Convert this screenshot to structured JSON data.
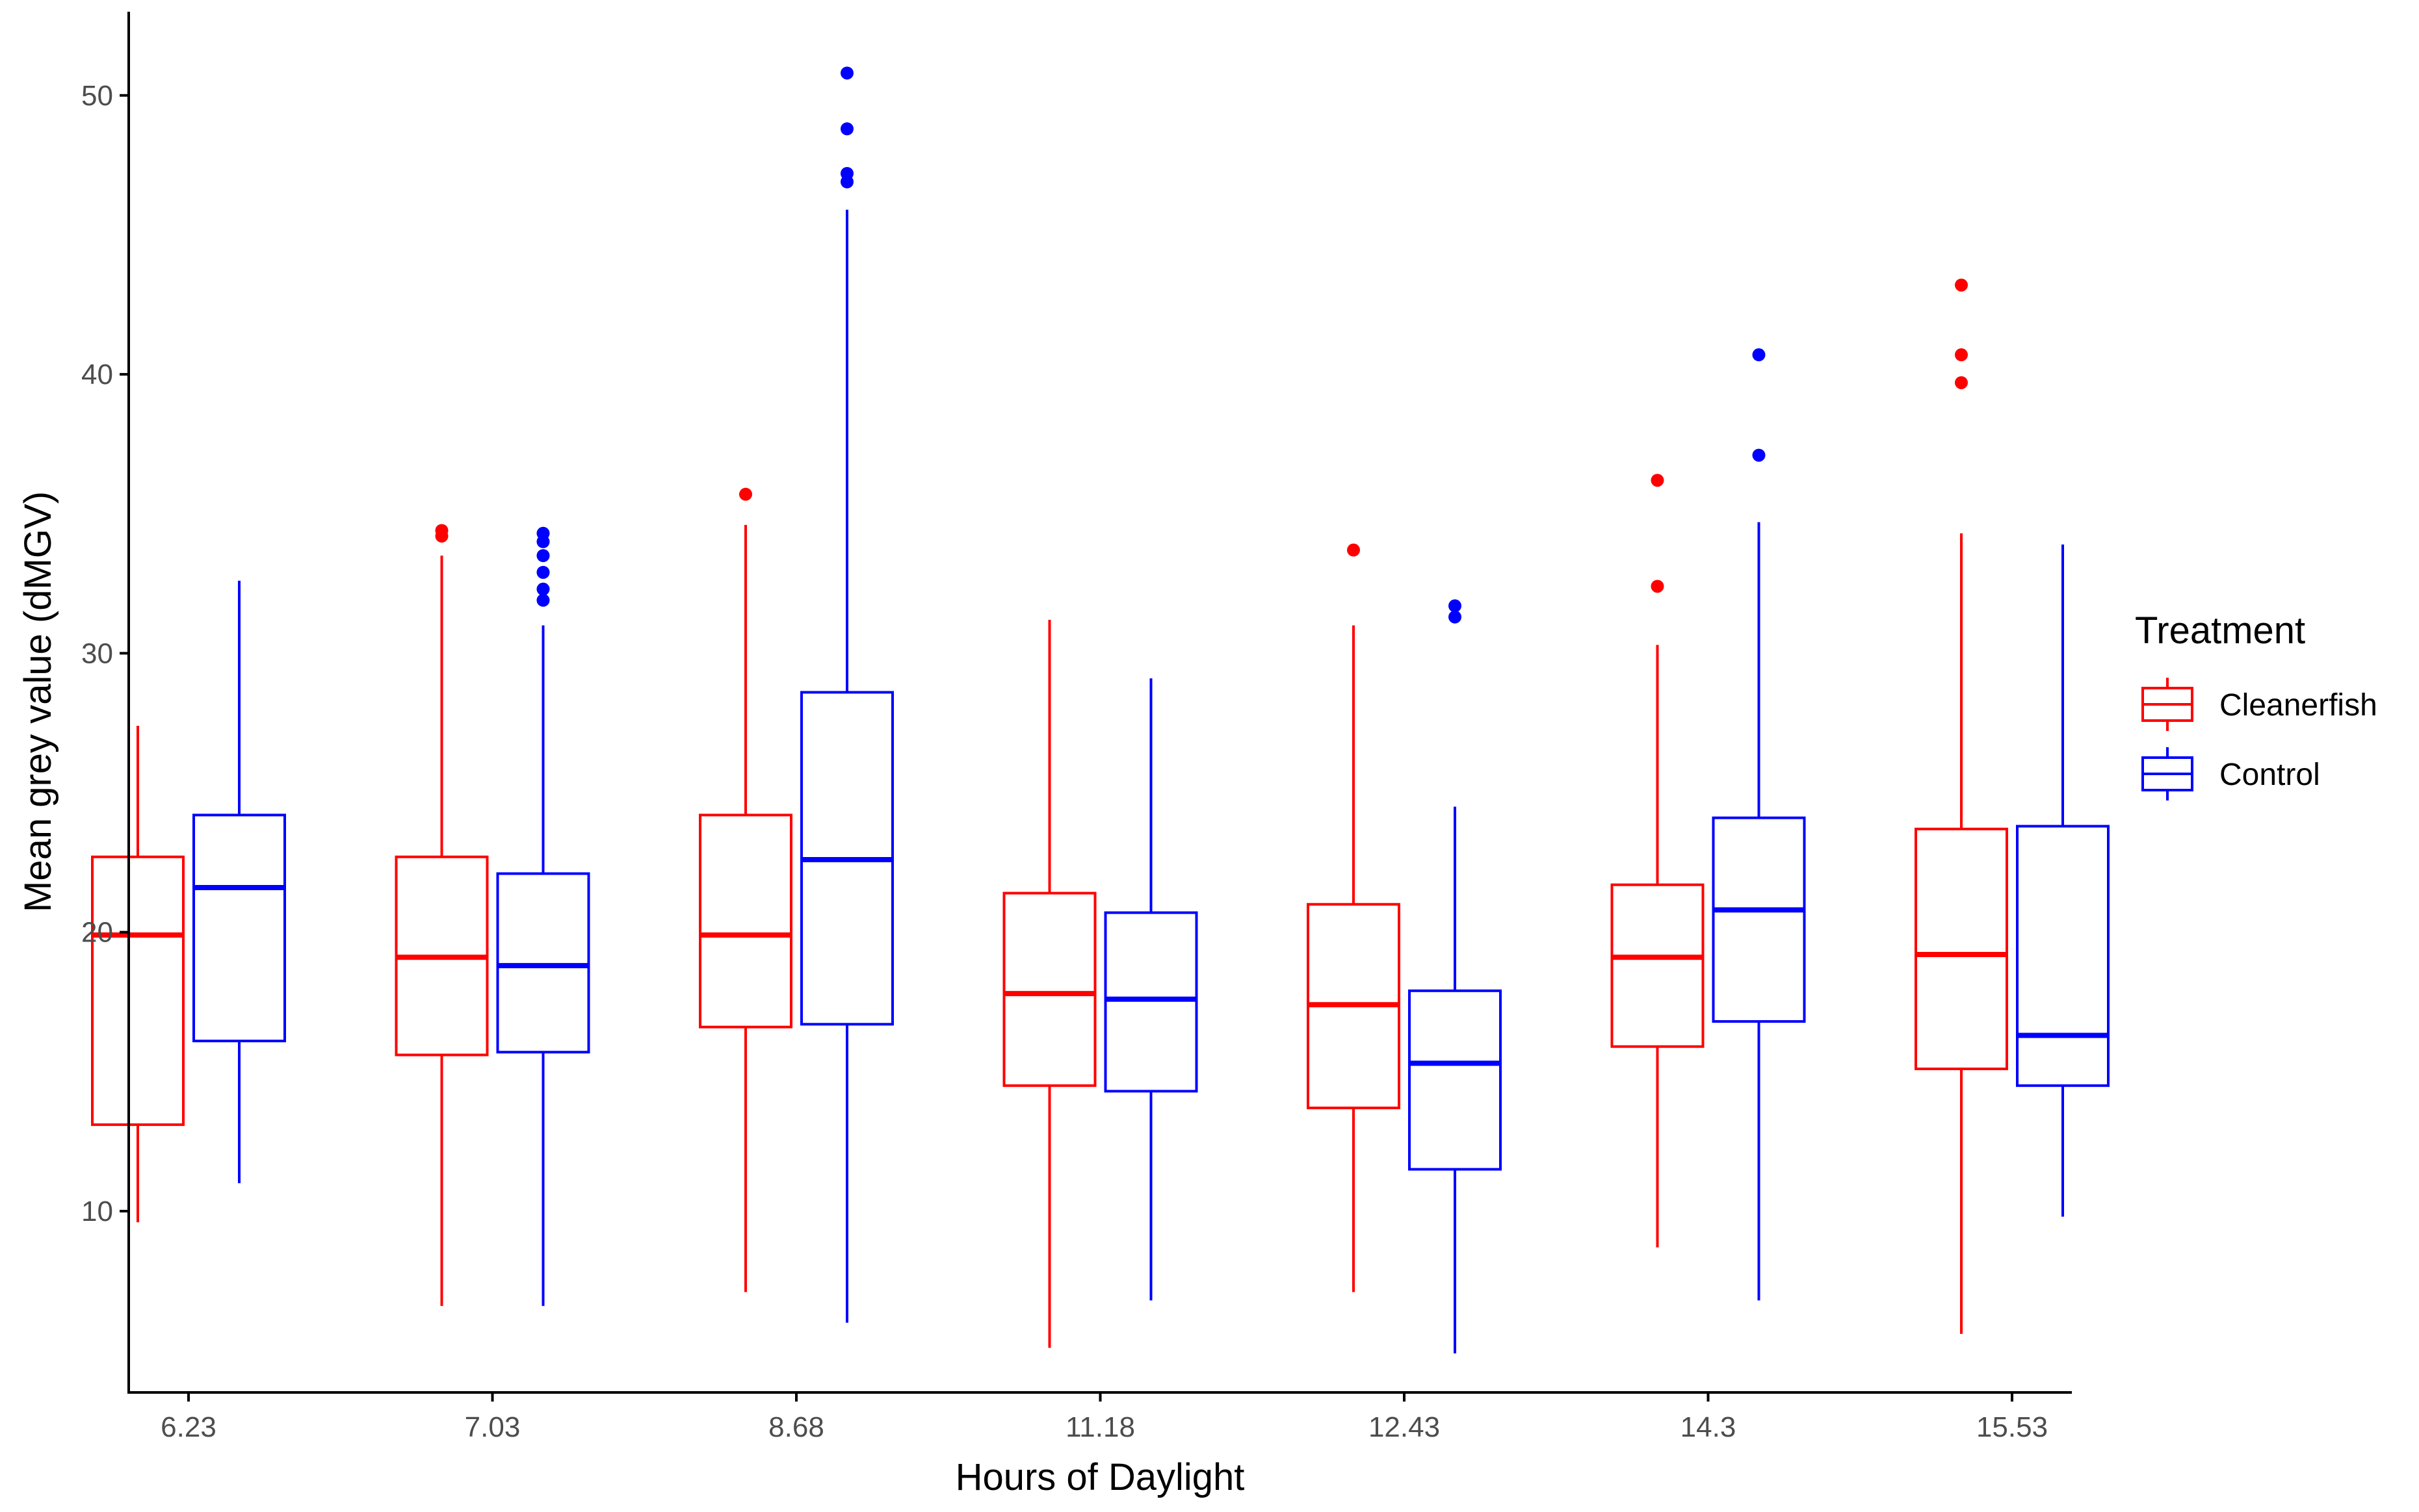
{
  "chart_data": {
    "type": "boxplot",
    "title": "",
    "xlabel": "Hours of Daylight",
    "ylabel": "Mean grey value (dMGV)",
    "ylim": [
      3.5,
      53
    ],
    "yticks": [
      10,
      20,
      30,
      40,
      50
    ],
    "grid": false,
    "legend": {
      "title": "Treatment",
      "position": "right",
      "entries": [
        "Cleanerfish",
        "Control"
      ]
    },
    "colors": {
      "Cleanerfish": "#ff0000",
      "Control": "#0000ff",
      "axis": "#000000",
      "tick_text": "#4d4d4d"
    },
    "categories": [
      "6.23",
      "7.03",
      "8.68",
      "11.18",
      "12.43",
      "14.3",
      "15.53"
    ],
    "series": [
      {
        "name": "Cleanerfish",
        "color": "#ff0000",
        "boxes": [
          {
            "whisker_low": 9.6,
            "q1": 13.1,
            "median": 19.9,
            "q3": 22.7,
            "whisker_high": 27.4,
            "outliers": []
          },
          {
            "whisker_low": 6.6,
            "q1": 15.6,
            "median": 19.1,
            "q3": 22.7,
            "whisker_high": 33.5,
            "outliers": [
              34.2,
              34.4
            ]
          },
          {
            "whisker_low": 7.1,
            "q1": 16.6,
            "median": 19.9,
            "q3": 24.2,
            "whisker_high": 34.6,
            "outliers": [
              35.7
            ]
          },
          {
            "whisker_low": 5.1,
            "q1": 14.5,
            "median": 17.8,
            "q3": 21.4,
            "whisker_high": 31.2,
            "outliers": []
          },
          {
            "whisker_low": 7.1,
            "q1": 13.7,
            "median": 17.4,
            "q3": 21.0,
            "whisker_high": 31.0,
            "outliers": [
              33.7
            ]
          },
          {
            "whisker_low": 8.7,
            "q1": 15.9,
            "median": 19.1,
            "q3": 21.7,
            "whisker_high": 30.3,
            "outliers": [
              32.4,
              36.2
            ]
          },
          {
            "whisker_low": 5.6,
            "q1": 15.1,
            "median": 19.2,
            "q3": 23.7,
            "whisker_high": 34.3,
            "outliers": [
              39.7,
              40.7,
              43.2
            ]
          }
        ]
      },
      {
        "name": "Control",
        "color": "#0000ff",
        "boxes": [
          {
            "whisker_low": 11.0,
            "q1": 16.1,
            "median": 21.6,
            "q3": 24.2,
            "whisker_high": 32.6,
            "outliers": []
          },
          {
            "whisker_low": 6.6,
            "q1": 15.7,
            "median": 18.8,
            "q3": 22.1,
            "whisker_high": 31.0,
            "outliers": [
              31.9,
              32.3,
              32.9,
              33.5,
              34.0,
              34.3
            ]
          },
          {
            "whisker_low": 6.0,
            "q1": 16.7,
            "median": 22.6,
            "q3": 28.6,
            "whisker_high": 45.9,
            "outliers": [
              46.9,
              47.2,
              48.8,
              50.8
            ]
          },
          {
            "whisker_low": 6.8,
            "q1": 14.3,
            "median": 17.6,
            "q3": 20.7,
            "whisker_high": 29.1,
            "outliers": []
          },
          {
            "whisker_low": 4.9,
            "q1": 11.5,
            "median": 15.3,
            "q3": 17.9,
            "whisker_high": 24.5,
            "outliers": [
              31.3,
              31.7
            ]
          },
          {
            "whisker_low": 6.8,
            "q1": 16.8,
            "median": 20.8,
            "q3": 24.1,
            "whisker_high": 34.7,
            "outliers": [
              37.1,
              40.7
            ]
          },
          {
            "whisker_low": 9.8,
            "q1": 14.5,
            "median": 16.3,
            "q3": 23.8,
            "whisker_high": 33.9,
            "outliers": []
          }
        ]
      }
    ]
  }
}
